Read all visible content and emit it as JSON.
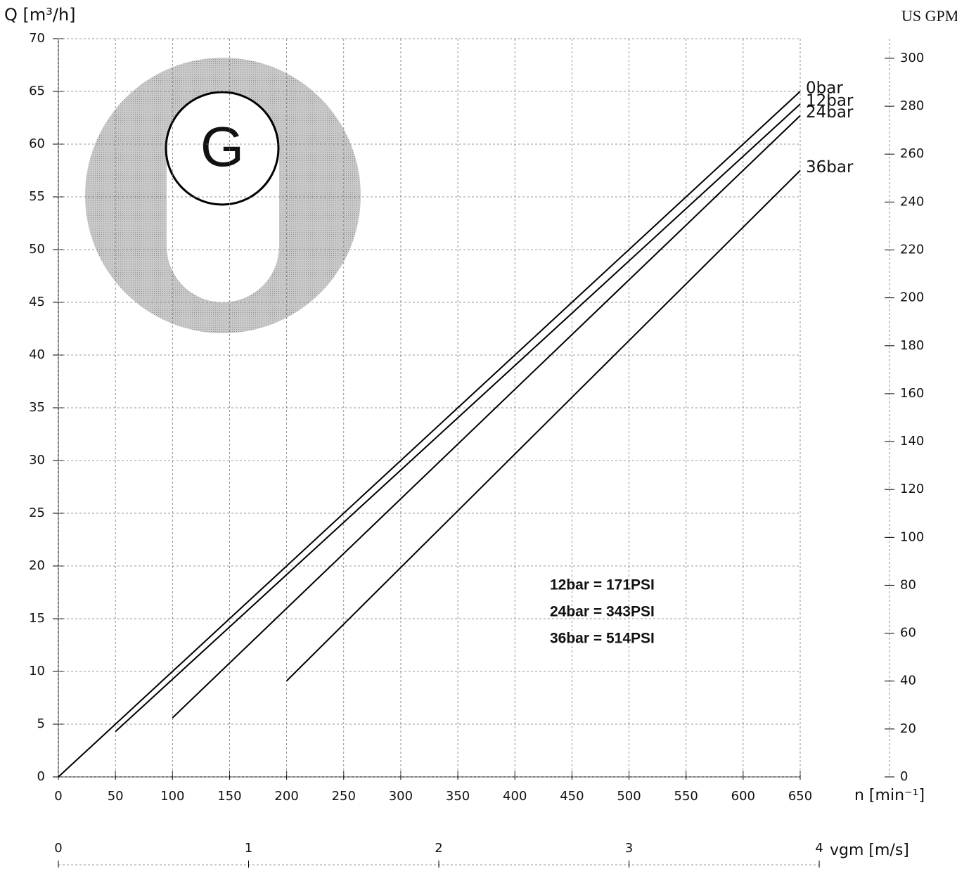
{
  "chart_data": {
    "type": "line",
    "y_label": "Q [m³/h]",
    "y2_label": "US GPM",
    "x_label": "n [min⁻¹]",
    "x2_label": "vgm [m/s]",
    "logo_text": "G",
    "xlim": [
      0,
      650
    ],
    "xticks": [
      0,
      50,
      100,
      150,
      200,
      250,
      300,
      350,
      400,
      450,
      500,
      550,
      600,
      650
    ],
    "ylim": [
      0,
      70
    ],
    "yticks": [
      0,
      5,
      10,
      15,
      20,
      25,
      30,
      35,
      40,
      45,
      50,
      55,
      60,
      65,
      70
    ],
    "y2lim": [
      0,
      308.2
    ],
    "y2ticks": [
      0,
      20,
      40,
      60,
      80,
      100,
      120,
      140,
      160,
      180,
      200,
      220,
      240,
      260,
      280,
      300
    ],
    "x2lim": [
      0,
      3.9
    ],
    "x2ticks": [
      0,
      1,
      2,
      3,
      4
    ],
    "grid": true,
    "series": [
      {
        "name": "0bar",
        "color": "#000000",
        "x": [
          0,
          650
        ],
        "values": [
          0,
          65
        ]
      },
      {
        "name": "12bar",
        "color": "#000000",
        "x": [
          50,
          650
        ],
        "values": [
          4.3,
          63.8
        ]
      },
      {
        "name": "24bar",
        "color": "#000000",
        "x": [
          100,
          650
        ],
        "values": [
          5.6,
          62.7
        ]
      },
      {
        "name": "36bar",
        "color": "#000000",
        "x": [
          200,
          650
        ],
        "values": [
          9.1,
          57.5
        ]
      }
    ],
    "annotations": [
      "12bar = 171PSI",
      "24bar = 343PSI",
      "36bar = 514PSI"
    ]
  }
}
